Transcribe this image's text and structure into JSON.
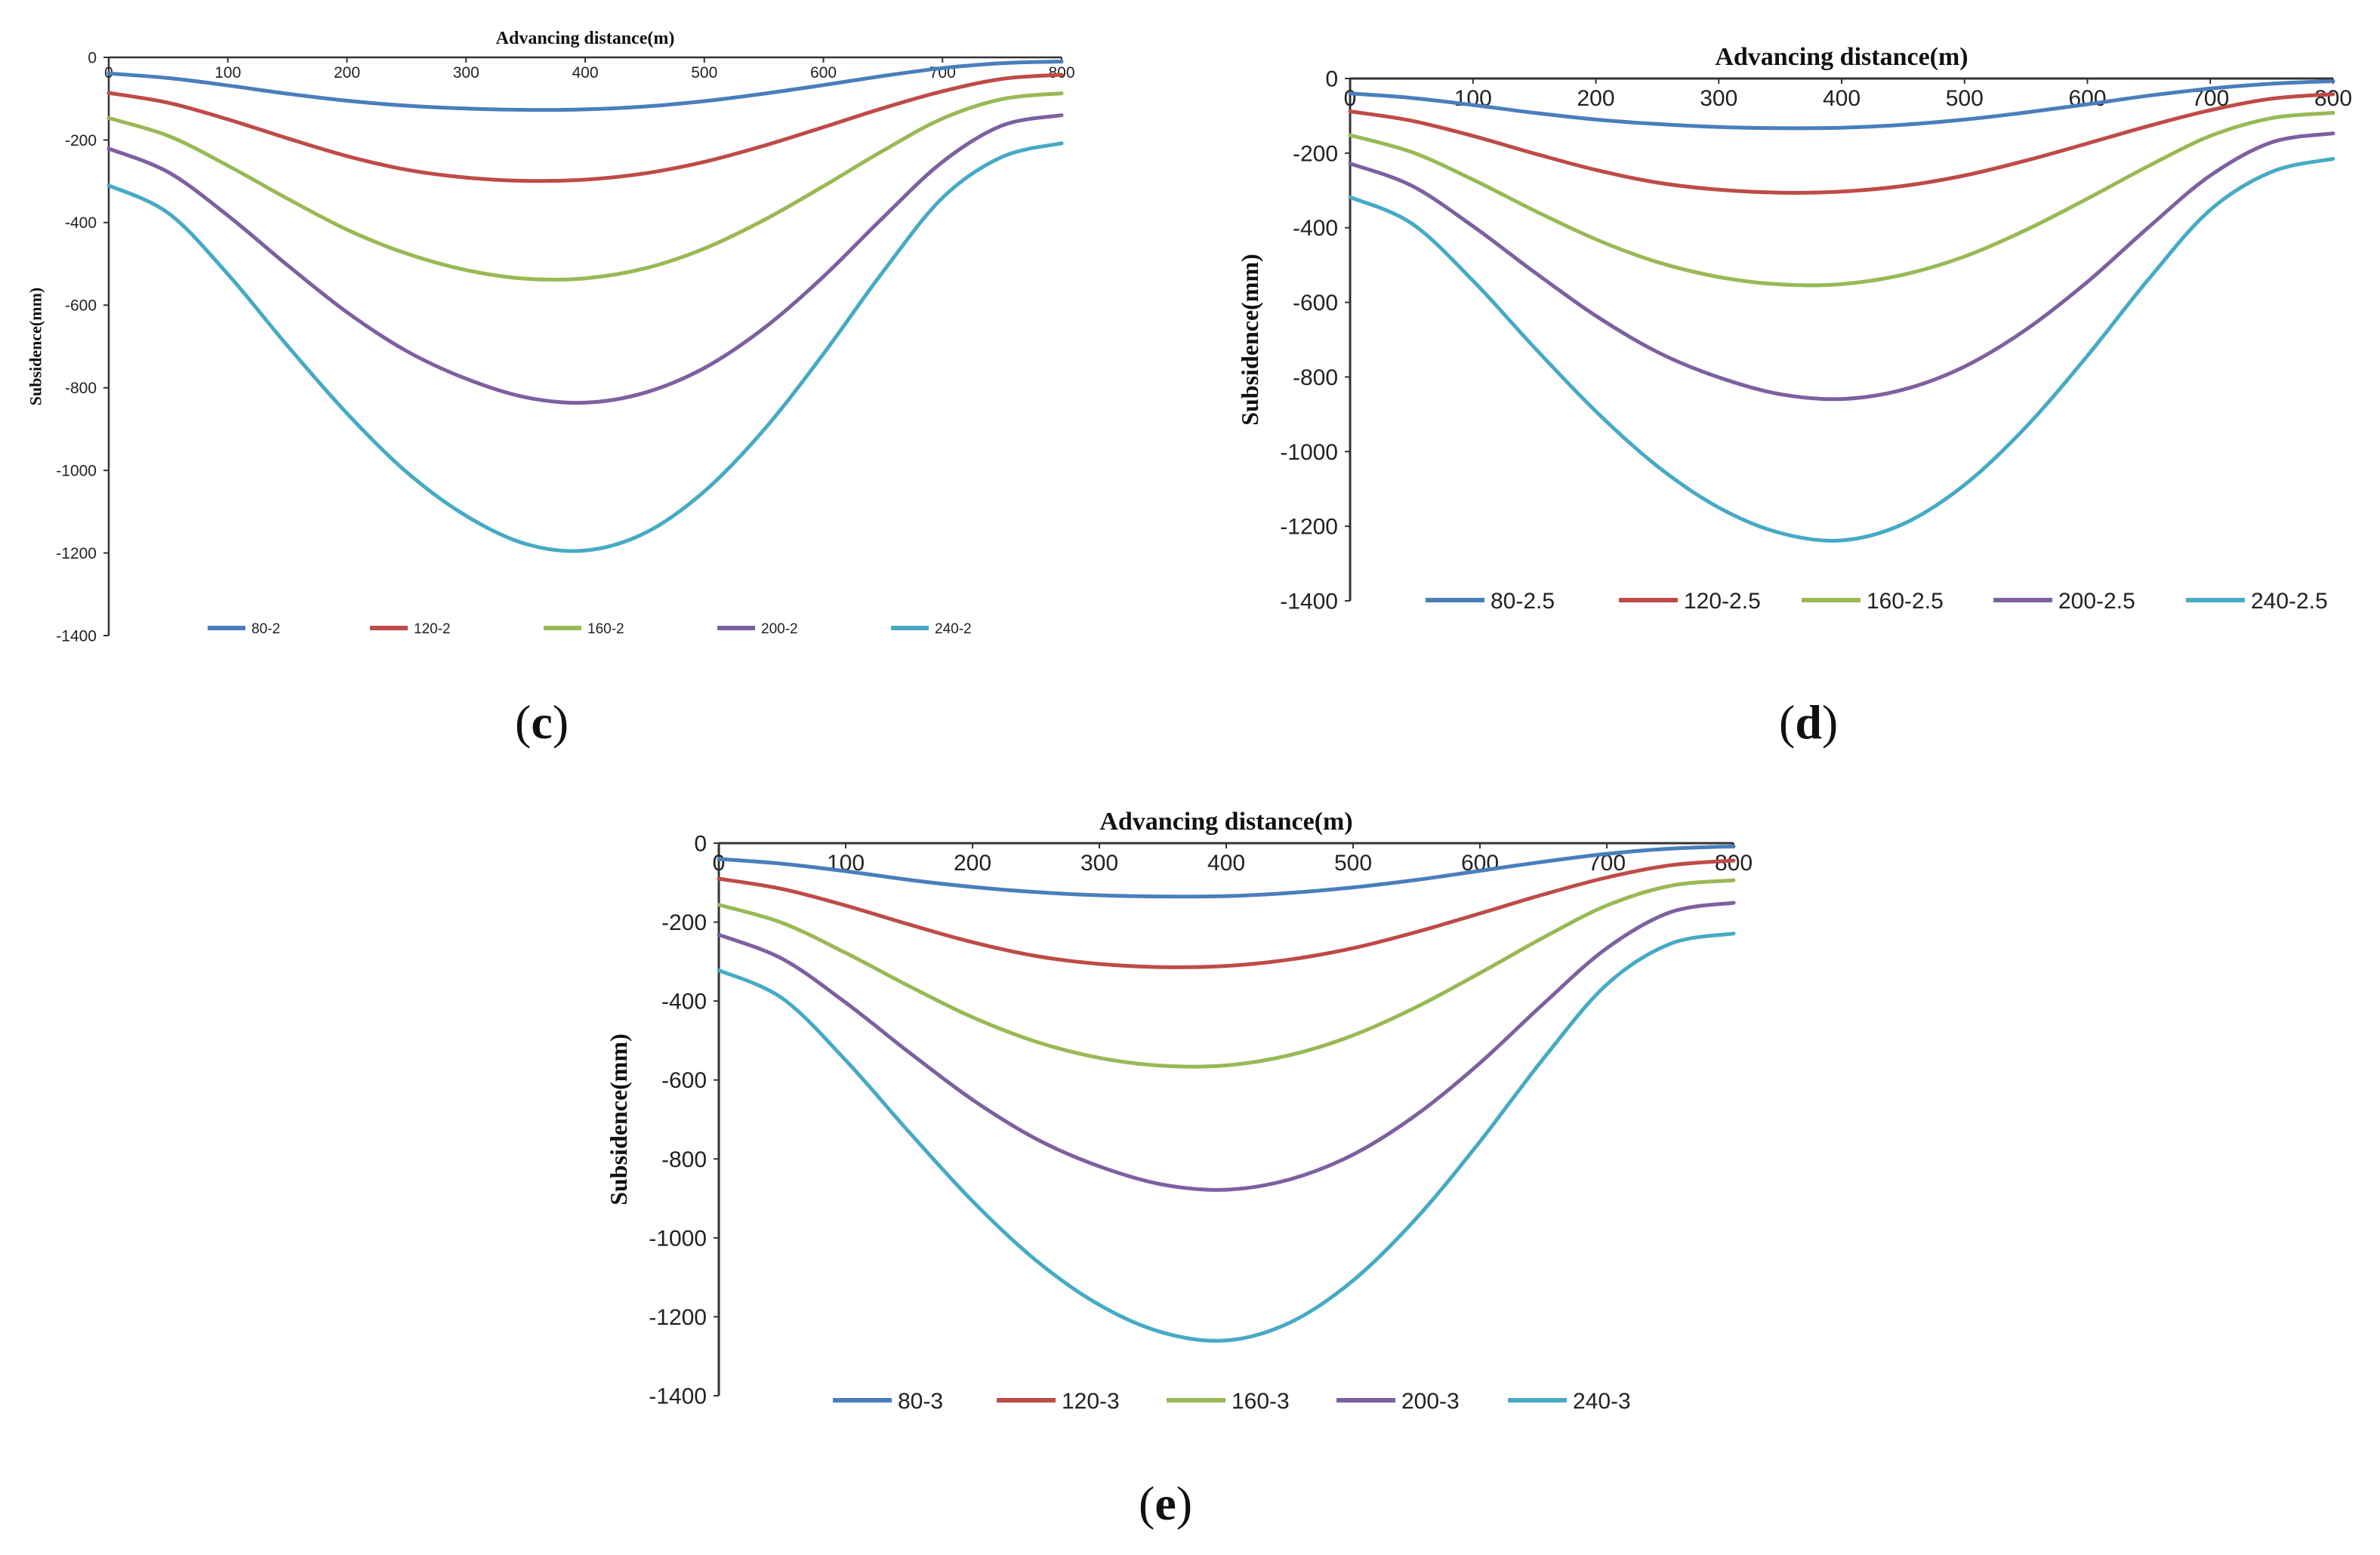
{
  "chart_data": [
    {
      "id": "c",
      "type": "line",
      "panel_label": {
        "open": "(",
        "letter": "c",
        "close": ")"
      },
      "xlabel": "Advancing distance(m)",
      "ylabel": "Subsidence(mm)",
      "xlim": [
        0,
        800
      ],
      "ylim": [
        -1400,
        0
      ],
      "x_ticks": [
        "0",
        "100",
        "200",
        "300",
        "400",
        "500",
        "600",
        "700",
        "800"
      ],
      "y_ticks": [
        "0",
        "-200",
        "-400",
        "-600",
        "-800",
        "-1000",
        "-1200",
        "-1400"
      ],
      "grid": false,
      "legend_position": "bottom",
      "x": [
        0,
        50,
        100,
        150,
        200,
        250,
        300,
        350,
        400,
        450,
        500,
        550,
        600,
        650,
        700,
        750,
        800
      ],
      "series": [
        {
          "name": "80-2",
          "color": "#4a7ebb",
          "values": [
            -39,
            -50,
            -68,
            -88,
            -105,
            -117,
            -124,
            -127,
            -126,
            -119,
            -106,
            -88,
            -67,
            -45,
            -26,
            -14,
            -10
          ]
        },
        {
          "name": "120-2",
          "color": "#be4b48",
          "values": [
            -86,
            -110,
            -150,
            -196,
            -239,
            -272,
            -291,
            -299,
            -296,
            -281,
            -253,
            -214,
            -169,
            -123,
            -82,
            -52,
            -42
          ]
        },
        {
          "name": "160-2",
          "color": "#98b954",
          "values": [
            -147,
            -190,
            -262,
            -342,
            -417,
            -475,
            -515,
            -536,
            -535,
            -511,
            -463,
            -394,
            -312,
            -226,
            -148,
            -101,
            -87
          ]
        },
        {
          "name": "200-2",
          "color": "#7d60a0",
          "values": [
            -221,
            -278,
            -383,
            -503,
            -617,
            -711,
            -778,
            -823,
            -836,
            -812,
            -752,
            -656,
            -531,
            -388,
            -253,
            -165,
            -140
          ]
        },
        {
          "name": "240-2",
          "color": "#46aac5",
          "values": [
            -310,
            -377,
            -525,
            -698,
            -862,
            -1004,
            -1110,
            -1178,
            -1194,
            -1152,
            -1051,
            -902,
            -718,
            -519,
            -340,
            -241,
            -208
          ]
        }
      ]
    },
    {
      "id": "d",
      "type": "line",
      "panel_label": {
        "open": "(",
        "letter": "d",
        "close": ")"
      },
      "xlabel": "Advancing distance(m)",
      "ylabel": "Subsidence(mm)",
      "xlim": [
        0,
        800
      ],
      "ylim": [
        -1400,
        0
      ],
      "x_ticks": [
        "0",
        "100",
        "200",
        "300",
        "400",
        "500",
        "600",
        "700",
        "800"
      ],
      "y_ticks": [
        "0",
        "-200",
        "-400",
        "-600",
        "-800",
        "-1000",
        "-1200",
        "-1400"
      ],
      "grid": false,
      "legend_position": "bottom",
      "x": [
        0,
        50,
        100,
        150,
        200,
        250,
        300,
        350,
        400,
        450,
        500,
        550,
        600,
        650,
        700,
        750,
        800
      ],
      "series": [
        {
          "name": "80-2.5",
          "color": "#4a7ebb",
          "values": [
            -40,
            -52,
            -71,
            -92,
            -110,
            -122,
            -130,
            -133,
            -132,
            -124,
            -110,
            -91,
            -69,
            -46,
            -27,
            -14,
            -7
          ]
        },
        {
          "name": "120-2.5",
          "color": "#be4b48",
          "values": [
            -88,
            -113,
            -154,
            -201,
            -245,
            -279,
            -298,
            -306,
            -303,
            -288,
            -260,
            -220,
            -174,
            -127,
            -85,
            -54,
            -42
          ]
        },
        {
          "name": "160-2.5",
          "color": "#98b954",
          "values": [
            -152,
            -197,
            -271,
            -354,
            -431,
            -492,
            -532,
            -552,
            -551,
            -526,
            -477,
            -406,
            -322,
            -234,
            -154,
            -106,
            -92
          ]
        },
        {
          "name": "200-2.5",
          "color": "#7d60a0",
          "values": [
            -228,
            -287,
            -396,
            -519,
            -636,
            -733,
            -801,
            -846,
            -859,
            -834,
            -772,
            -673,
            -545,
            -398,
            -260,
            -171,
            -147
          ]
        },
        {
          "name": "240-2.5",
          "color": "#46aac5",
          "values": [
            -318,
            -388,
            -542,
            -721,
            -892,
            -1039,
            -1150,
            -1218,
            -1238,
            -1194,
            -1089,
            -934,
            -743,
            -537,
            -352,
            -250,
            -215
          ]
        }
      ]
    },
    {
      "id": "e",
      "type": "line",
      "panel_label": {
        "open": "(",
        "letter": "e",
        "close": ")"
      },
      "xlabel": "Advancing distance(m)",
      "ylabel": "Subsidence(mm)",
      "xlim": [
        0,
        800
      ],
      "ylim": [
        -1400,
        0
      ],
      "x_ticks": [
        "0",
        "100",
        "200",
        "300",
        "400",
        "500",
        "600",
        "700",
        "800"
      ],
      "y_ticks": [
        "0",
        "-200",
        "-400",
        "-600",
        "-800",
        "-1000",
        "-1200",
        "-1400"
      ],
      "grid": false,
      "legend_position": "bottom",
      "x": [
        0,
        50,
        100,
        150,
        200,
        250,
        300,
        350,
        400,
        450,
        500,
        550,
        600,
        650,
        700,
        750,
        800
      ],
      "series": [
        {
          "name": "80-3",
          "color": "#4a7ebb",
          "values": [
            -40,
            -52,
            -71,
            -93,
            -111,
            -124,
            -132,
            -135,
            -134,
            -126,
            -112,
            -93,
            -70,
            -47,
            -27,
            -14,
            -8
          ]
        },
        {
          "name": "120-3",
          "color": "#be4b48",
          "values": [
            -90,
            -116,
            -158,
            -206,
            -251,
            -286,
            -306,
            -314,
            -311,
            -295,
            -266,
            -225,
            -178,
            -130,
            -87,
            -56,
            -44
          ]
        },
        {
          "name": "160-3",
          "color": "#98b954",
          "values": [
            -156,
            -202,
            -278,
            -362,
            -441,
            -503,
            -544,
            -564,
            -563,
            -537,
            -487,
            -415,
            -329,
            -239,
            -158,
            -108,
            -94
          ]
        },
        {
          "name": "200-3",
          "color": "#7d60a0",
          "values": [
            -232,
            -293,
            -404,
            -530,
            -650,
            -749,
            -819,
            -865,
            -878,
            -852,
            -789,
            -688,
            -557,
            -407,
            -266,
            -175,
            -151
          ]
        },
        {
          "name": "240-3",
          "color": "#46aac5",
          "values": [
            -322,
            -393,
            -550,
            -732,
            -907,
            -1057,
            -1170,
            -1240,
            -1260,
            -1215,
            -1108,
            -950,
            -756,
            -546,
            -358,
            -255,
            -229
          ]
        }
      ]
    }
  ]
}
